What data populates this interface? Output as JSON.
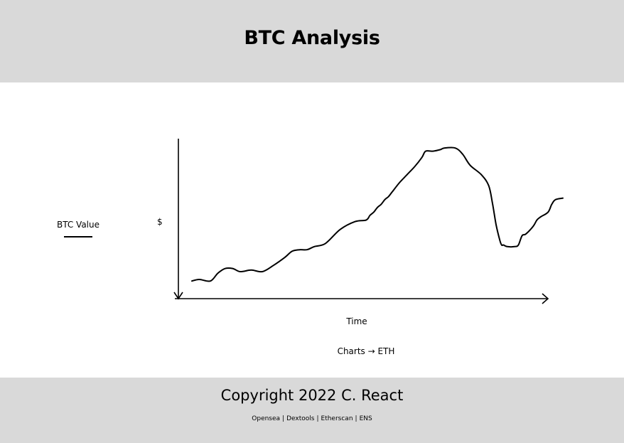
{
  "header": {
    "title": "BTC Analysis"
  },
  "legend": {
    "label": "BTC Value"
  },
  "chart_data": {
    "type": "line",
    "title": "",
    "xlabel": "Time",
    "ylabel": "$",
    "grid": false,
    "legend": "left",
    "series": [
      {
        "name": "BTC Value",
        "x": [
          0,
          2,
          5,
          7,
          9,
          11,
          13,
          16,
          19,
          22,
          25,
          27,
          29,
          31,
          33,
          36,
          40,
          44,
          47,
          48,
          49,
          50,
          51,
          52,
          53,
          54,
          56,
          58,
          60,
          62,
          63,
          65,
          67,
          68,
          71,
          73,
          75,
          78,
          80,
          81,
          82,
          83,
          83.5,
          84,
          85,
          87,
          88,
          89,
          90,
          92,
          93,
          94,
          96,
          97,
          98,
          100
        ],
        "y": [
          9,
          10,
          9,
          14,
          17,
          17,
          15,
          16,
          15,
          19,
          24,
          28,
          29,
          29,
          31,
          33,
          42,
          47,
          48,
          51,
          53,
          56,
          58,
          61,
          63,
          66,
          72,
          77,
          82,
          88,
          92,
          92,
          93,
          94,
          94,
          90,
          83,
          77,
          70,
          59,
          45,
          35,
          32,
          32,
          31,
          31,
          32,
          38,
          39,
          44,
          48,
          50,
          53,
          58,
          61,
          62
        ]
      }
    ],
    "xlim": [
      0,
      100
    ],
    "ylim": [
      0,
      100
    ]
  },
  "nav": {
    "charts_link": "Charts → ETH"
  },
  "footer": {
    "copyright": "Copyright 2022 C. React",
    "links": [
      "Opensea",
      "Dextools",
      "Etherscan",
      "ENS"
    ],
    "separator": "|"
  }
}
